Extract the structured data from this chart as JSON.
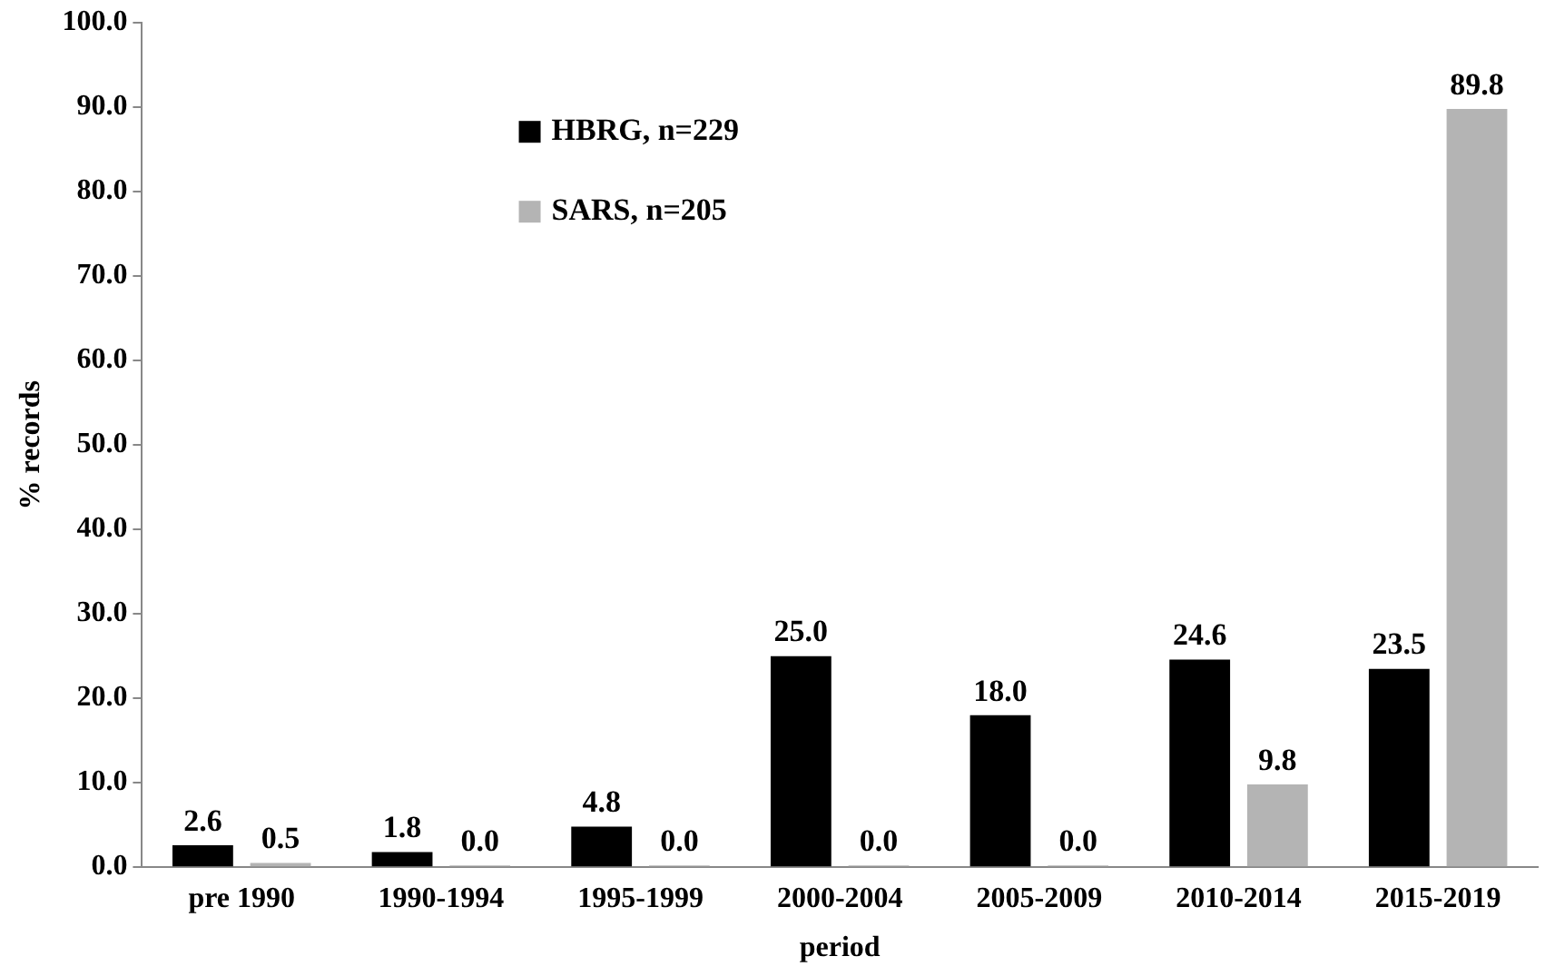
{
  "chart_data": {
    "type": "bar",
    "xlabel": "period",
    "ylabel": "% records",
    "categories": [
      "pre 1990",
      "1990-1994",
      "1995-1999",
      "2000-2004",
      "2005-2009",
      "2010-2014",
      "2015-2019"
    ],
    "series": [
      {
        "name": "HBRG, n=229",
        "color": "#000000",
        "values": [
          2.6,
          1.8,
          4.8,
          25.0,
          18.0,
          24.6,
          23.5
        ],
        "value_labels": [
          "2.6",
          "1.8",
          "4.8",
          "25.0",
          "18.0",
          "24.6",
          "23.5"
        ]
      },
      {
        "name": "SARS, n=205",
        "color": "#b4b4b4",
        "values": [
          0.5,
          0.0,
          0.0,
          0.0,
          0.0,
          9.8,
          89.8
        ],
        "value_labels": [
          "0.5",
          "0.0",
          "0.0",
          "0.0",
          "0.0",
          "9.8",
          "89.8"
        ]
      }
    ],
    "ylim": [
      0,
      100
    ],
    "yticks": [
      {
        "value": 0,
        "label": "0.0"
      },
      {
        "value": 10,
        "label": "10.0"
      },
      {
        "value": 20,
        "label": "20.0"
      },
      {
        "value": 30,
        "label": "30.0"
      },
      {
        "value": 40,
        "label": "40.0"
      },
      {
        "value": 50,
        "label": "50.0"
      },
      {
        "value": 60,
        "label": "60.0"
      },
      {
        "value": 70,
        "label": "70.0"
      },
      {
        "value": 80,
        "label": "80.0"
      },
      {
        "value": 90,
        "label": "90.0"
      },
      {
        "value": 100,
        "label": "100.0"
      }
    ],
    "grid": false,
    "legend": "top left"
  }
}
